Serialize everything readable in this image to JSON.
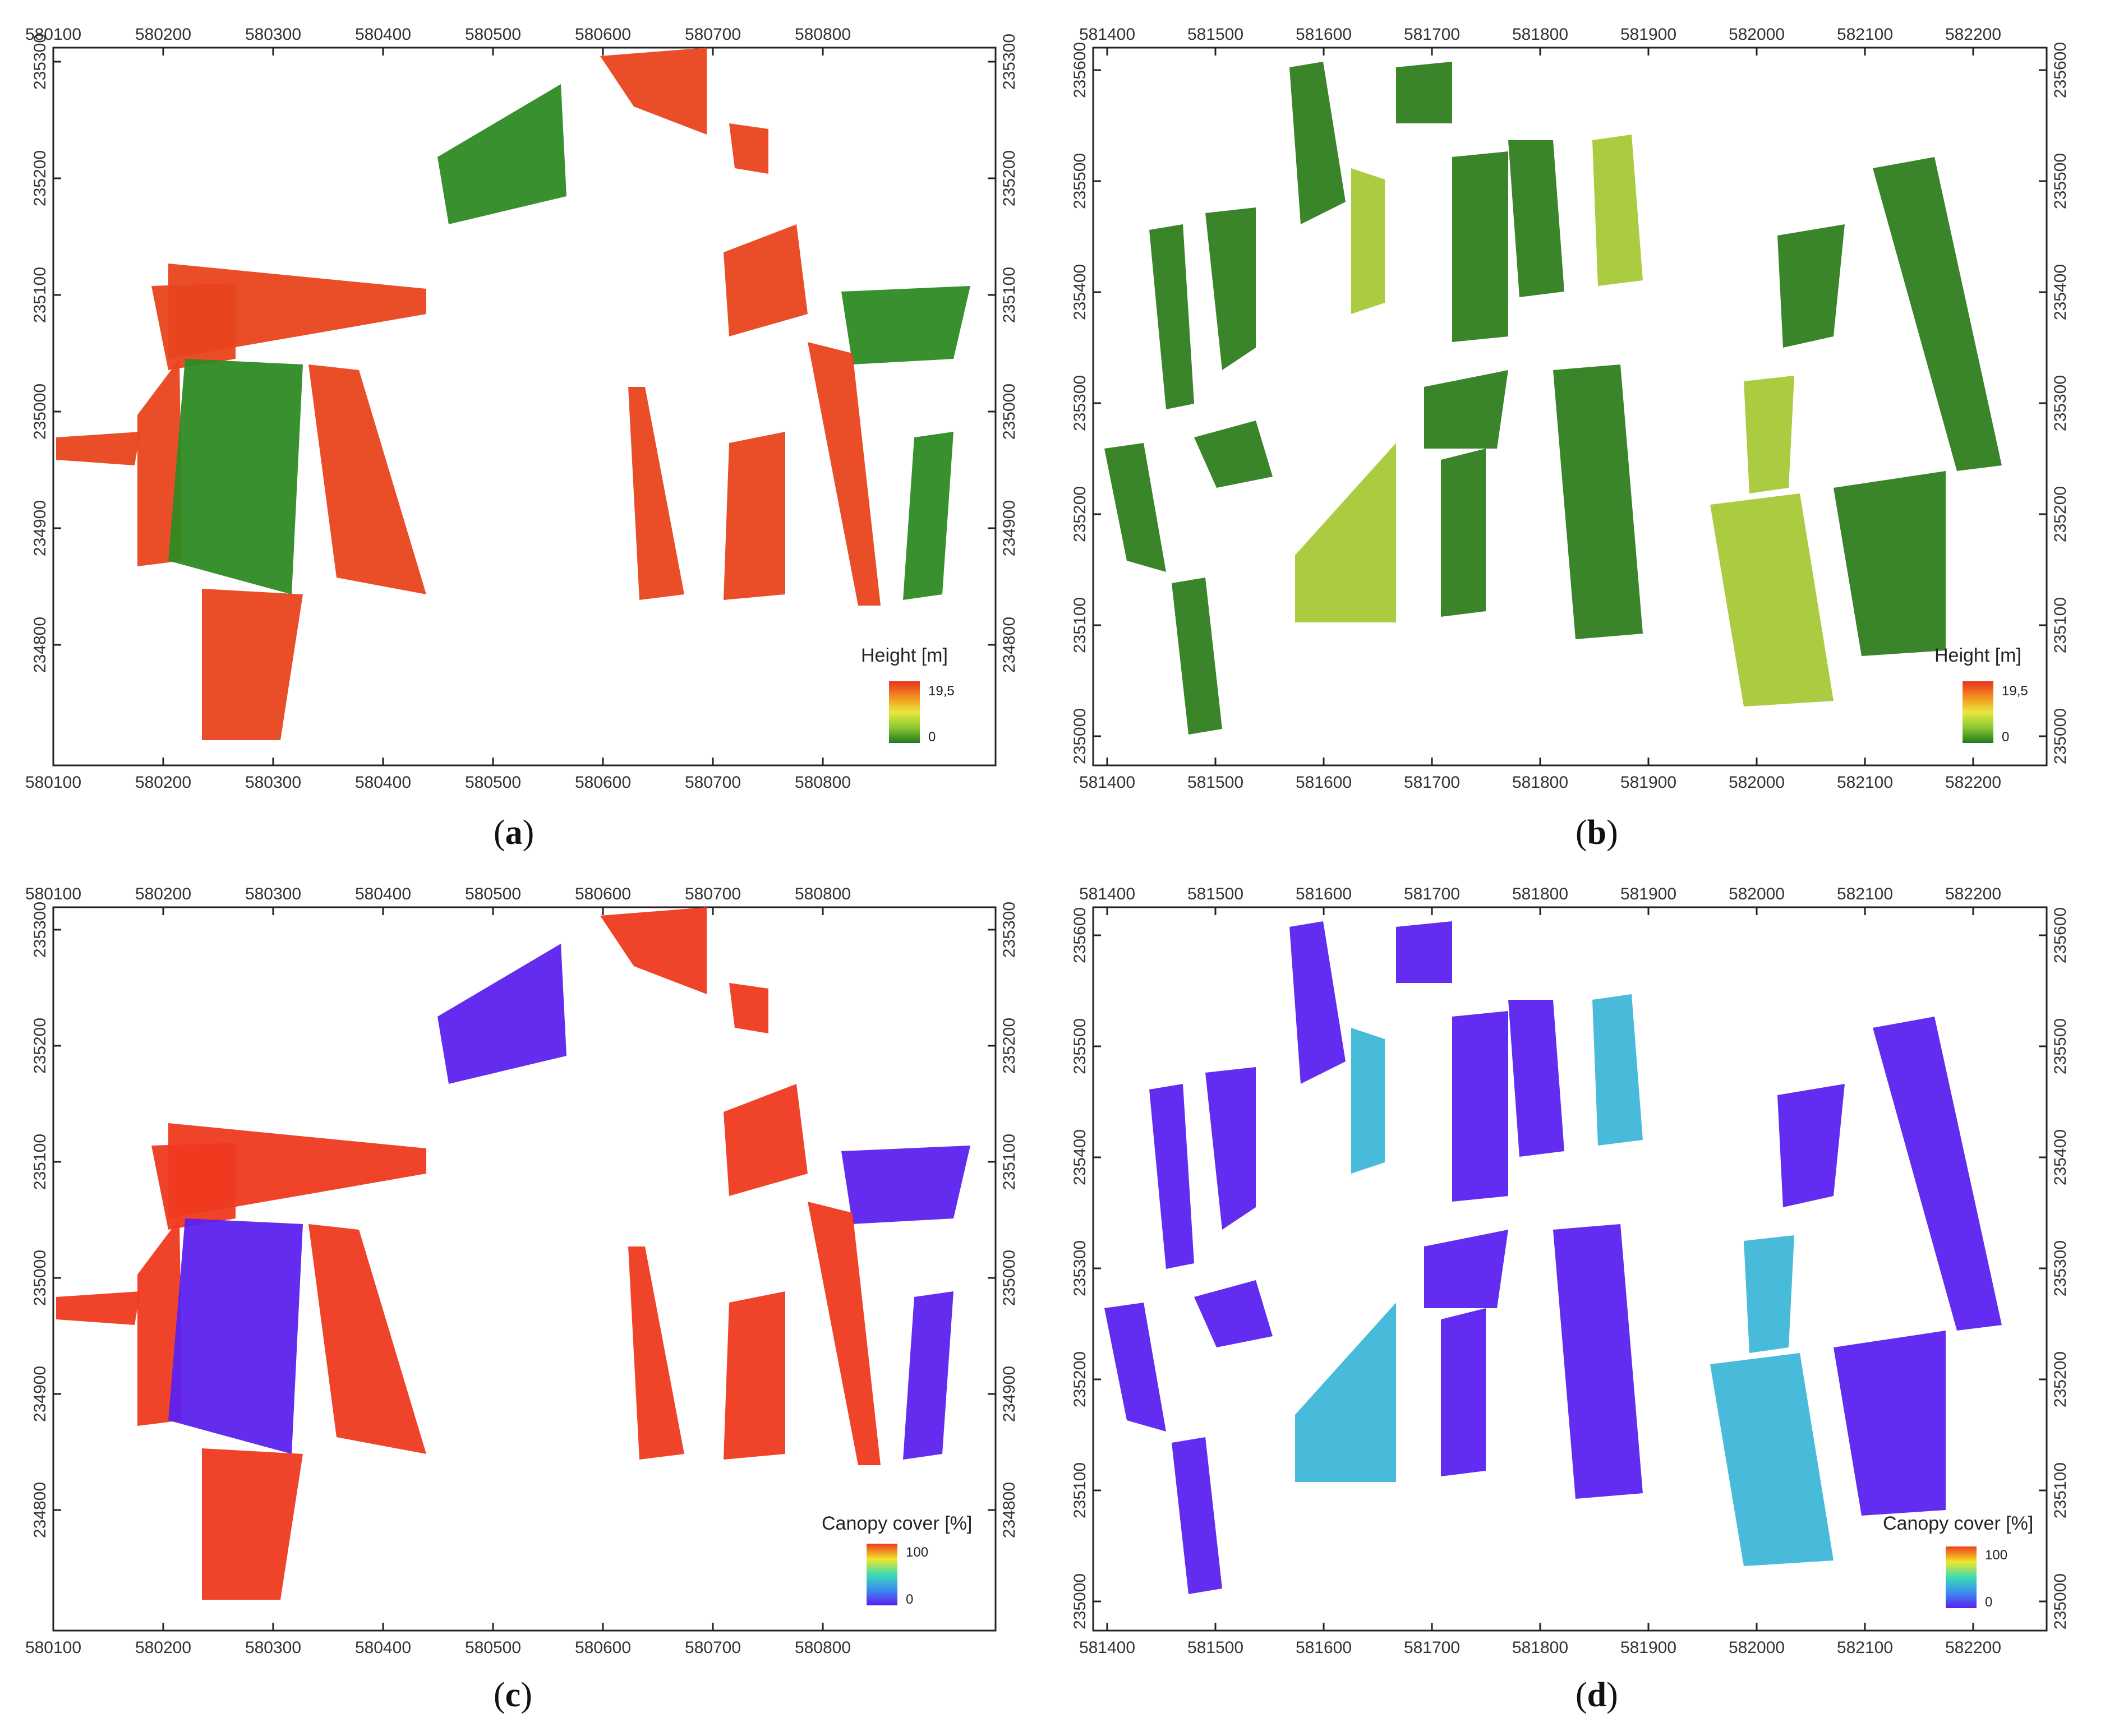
{
  "panels": [
    {
      "id": "a",
      "caption_open": "(",
      "caption_letter": "a",
      "caption_close": ")",
      "x_ticks": [
        "580100",
        "580200",
        "580300",
        "580400",
        "580500",
        "580600",
        "580700",
        "580800"
      ],
      "y_ticks": [
        "235300",
        "235200",
        "235100",
        "235000",
        "234900",
        "234800"
      ],
      "legend": {
        "title": "Height [m]",
        "max": "19,5",
        "min": "0",
        "ramp": "height"
      }
    },
    {
      "id": "b",
      "caption_open": "(",
      "caption_letter": "b",
      "caption_close": ")",
      "x_ticks": [
        "581400",
        "581500",
        "581600",
        "581700",
        "581800",
        "581900",
        "582000",
        "582100",
        "582200"
      ],
      "y_ticks": [
        "235600",
        "235500",
        "235400",
        "235300",
        "235200",
        "235100",
        "235000"
      ],
      "legend": {
        "title": "Height [m]",
        "max": "19,5",
        "min": "0",
        "ramp": "height"
      }
    },
    {
      "id": "c",
      "caption_open": "(",
      "caption_letter": "c",
      "caption_close": ")",
      "x_ticks": [
        "580100",
        "580200",
        "580300",
        "580400",
        "580500",
        "580600",
        "580700",
        "580800"
      ],
      "y_ticks": [
        "235300",
        "235200",
        "235100",
        "235000",
        "234900",
        "234800"
      ],
      "legend": {
        "title": "Canopy cover [%]",
        "max": "100",
        "min": "0",
        "ramp": "cover"
      }
    },
    {
      "id": "d",
      "caption_open": "(",
      "caption_letter": "d",
      "caption_close": ")",
      "x_ticks": [
        "581400",
        "581500",
        "581600",
        "581700",
        "581800",
        "581900",
        "582000",
        "582100",
        "582200"
      ],
      "y_ticks": [
        "235600",
        "235500",
        "235400",
        "235300",
        "235200",
        "235100",
        "235000"
      ],
      "legend": {
        "title": "Canopy cover [%]",
        "max": "100",
        "min": "0",
        "ramp": "cover"
      }
    }
  ],
  "colors": {
    "height_ramp": [
      "#e8321e",
      "#f4a020",
      "#e8e840",
      "#8cc832",
      "#1e7a1e"
    ],
    "cover_ramp": [
      "#f03c1e",
      "#f0e628",
      "#3cdcb4",
      "#3c8cf0",
      "#5a1ef0"
    ],
    "panel_a_fill": "#e8441e",
    "panel_a_alt": "#2d8a23",
    "panel_b_fill": "#2f7d1f",
    "panel_b_alt": "#a6c837",
    "panel_c_fill": "#ef3a1f",
    "panel_c_alt": "#5b21ee",
    "panel_d_fill": "#5a22ef",
    "panel_d_alt": "#3fb7d8"
  }
}
